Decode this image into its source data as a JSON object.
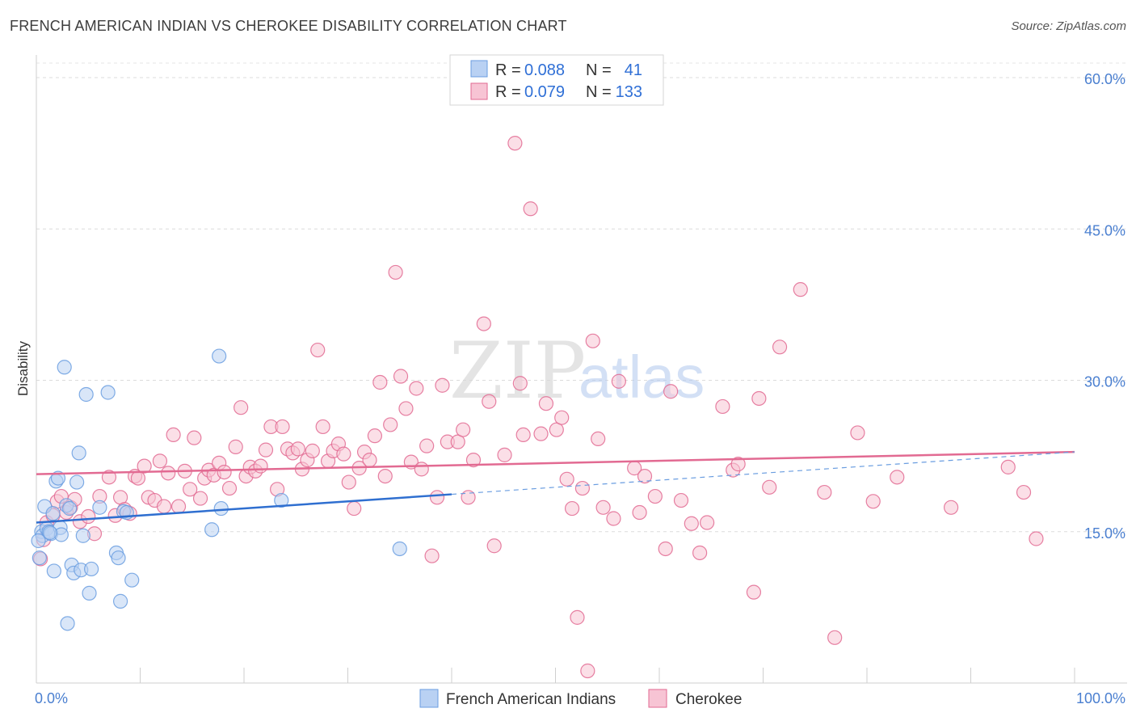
{
  "header": {
    "title": "FRENCH AMERICAN INDIAN VS CHEROKEE DISABILITY CORRELATION CHART",
    "source": "Source: ZipAtlas.com"
  },
  "watermark": {
    "zip": "ZIP",
    "atlas": "atlas"
  },
  "legend": {
    "rows": [
      {
        "r_label": "R =",
        "r_value": "0.088",
        "n_label": "N =",
        "n_value": "41",
        "color": "#a9c7f0"
      },
      {
        "r_label": "R =",
        "r_value": "0.079",
        "n_label": "N =",
        "n_value": "133",
        "color": "#f5b5c9"
      }
    ]
  },
  "chart_data": {
    "type": "scatter",
    "title": "FRENCH AMERICAN INDIAN VS CHEROKEE DISABILITY CORRELATION CHART",
    "xlabel": "",
    "ylabel": "Disability",
    "xlim": [
      0,
      100
    ],
    "ylim": [
      0,
      60
    ],
    "x_tick_labels": [
      "0.0%",
      "100.0%"
    ],
    "y_ticks": [
      15,
      30,
      45,
      60
    ],
    "y_tick_labels": [
      "15.0%",
      "30.0%",
      "45.0%",
      "60.0%"
    ],
    "grid": true,
    "legend_position": "top-center",
    "series": [
      {
        "name": "French American Indians",
        "color": "#6a9de0",
        "fill": "#b9d1f3",
        "trend": {
          "x": [
            0,
            40
          ],
          "y": [
            15.9,
            18.7
          ],
          "dashed_to": [
            100,
            22.9
          ]
        },
        "points": [
          [
            0.3,
            12.4
          ],
          [
            0.5,
            15.0
          ],
          [
            0.6,
            14.6
          ],
          [
            0.8,
            17.5
          ],
          [
            1.0,
            15.3
          ],
          [
            1.2,
            15.0
          ],
          [
            1.4,
            14.8
          ],
          [
            1.6,
            16.8
          ],
          [
            1.7,
            11.1
          ],
          [
            1.9,
            20.0
          ],
          [
            2.1,
            20.3
          ],
          [
            2.3,
            15.4
          ],
          [
            2.4,
            14.7
          ],
          [
            2.7,
            31.3
          ],
          [
            2.9,
            17.6
          ],
          [
            3.0,
            5.9
          ],
          [
            3.2,
            17.3
          ],
          [
            3.4,
            11.7
          ],
          [
            3.6,
            10.9
          ],
          [
            3.9,
            19.9
          ],
          [
            4.1,
            22.8
          ],
          [
            4.3,
            11.2
          ],
          [
            4.5,
            14.6
          ],
          [
            4.8,
            28.6
          ],
          [
            5.1,
            8.9
          ],
          [
            5.3,
            11.3
          ],
          [
            6.1,
            17.4
          ],
          [
            6.9,
            28.8
          ],
          [
            7.7,
            12.9
          ],
          [
            7.9,
            12.4
          ],
          [
            8.1,
            8.1
          ],
          [
            8.4,
            17.0
          ],
          [
            8.7,
            16.9
          ],
          [
            9.2,
            10.2
          ],
          [
            16.9,
            15.2
          ],
          [
            17.6,
            32.4
          ],
          [
            17.8,
            17.3
          ],
          [
            23.6,
            18.1
          ],
          [
            35.0,
            13.3
          ],
          [
            0.2,
            14.1
          ],
          [
            1.3,
            14.9
          ]
        ]
      },
      {
        "name": "Cherokee",
        "color": "#e26a92",
        "fill": "#f7c4d4",
        "trend": {
          "x": [
            0,
            100
          ],
          "y": [
            20.7,
            22.9
          ]
        },
        "points": [
          [
            0.4,
            12.3
          ],
          [
            0.7,
            14.2
          ],
          [
            1.0,
            15.9
          ],
          [
            1.6,
            16.6
          ],
          [
            2.0,
            18.0
          ],
          [
            2.4,
            18.5
          ],
          [
            2.9,
            16.9
          ],
          [
            3.3,
            17.4
          ],
          [
            3.7,
            18.2
          ],
          [
            4.2,
            16.0
          ],
          [
            5.0,
            16.5
          ],
          [
            5.6,
            14.8
          ],
          [
            6.1,
            18.5
          ],
          [
            7.0,
            20.4
          ],
          [
            7.6,
            16.6
          ],
          [
            8.1,
            18.4
          ],
          [
            8.5,
            17.2
          ],
          [
            9.0,
            16.8
          ],
          [
            9.5,
            20.5
          ],
          [
            9.8,
            20.3
          ],
          [
            10.4,
            21.5
          ],
          [
            10.8,
            18.4
          ],
          [
            11.4,
            18.1
          ],
          [
            11.9,
            22.0
          ],
          [
            12.3,
            17.5
          ],
          [
            12.7,
            20.8
          ],
          [
            13.2,
            24.6
          ],
          [
            13.7,
            17.5
          ],
          [
            14.3,
            21.0
          ],
          [
            14.8,
            19.2
          ],
          [
            15.2,
            24.3
          ],
          [
            15.8,
            18.3
          ],
          [
            16.2,
            20.3
          ],
          [
            16.6,
            21.1
          ],
          [
            17.1,
            20.6
          ],
          [
            17.6,
            21.8
          ],
          [
            18.1,
            20.9
          ],
          [
            18.6,
            19.3
          ],
          [
            19.2,
            23.4
          ],
          [
            19.7,
            27.3
          ],
          [
            20.2,
            20.5
          ],
          [
            20.6,
            21.4
          ],
          [
            21.1,
            21.0
          ],
          [
            21.6,
            21.5
          ],
          [
            22.1,
            23.1
          ],
          [
            22.6,
            25.4
          ],
          [
            23.2,
            19.2
          ],
          [
            23.7,
            25.4
          ],
          [
            24.2,
            23.2
          ],
          [
            24.7,
            22.8
          ],
          [
            25.2,
            23.2
          ],
          [
            25.6,
            21.2
          ],
          [
            26.1,
            22.1
          ],
          [
            26.6,
            23.0
          ],
          [
            27.1,
            33.0
          ],
          [
            27.6,
            25.4
          ],
          [
            28.1,
            22.0
          ],
          [
            28.6,
            23.0
          ],
          [
            29.1,
            23.7
          ],
          [
            29.6,
            22.7
          ],
          [
            30.1,
            19.9
          ],
          [
            30.6,
            17.3
          ],
          [
            31.1,
            21.3
          ],
          [
            31.6,
            22.9
          ],
          [
            32.1,
            22.1
          ],
          [
            32.6,
            24.5
          ],
          [
            33.1,
            29.8
          ],
          [
            33.6,
            20.5
          ],
          [
            34.1,
            25.6
          ],
          [
            34.6,
            40.7
          ],
          [
            35.1,
            30.4
          ],
          [
            35.6,
            27.2
          ],
          [
            36.1,
            21.9
          ],
          [
            36.6,
            29.2
          ],
          [
            37.1,
            21.2
          ],
          [
            37.6,
            23.5
          ],
          [
            38.1,
            12.6
          ],
          [
            38.6,
            18.4
          ],
          [
            39.1,
            29.5
          ],
          [
            39.6,
            23.9
          ],
          [
            40.6,
            23.9
          ],
          [
            41.1,
            25.1
          ],
          [
            41.6,
            18.4
          ],
          [
            42.1,
            22.1
          ],
          [
            43.1,
            35.6
          ],
          [
            43.6,
            27.9
          ],
          [
            44.1,
            13.6
          ],
          [
            45.1,
            22.6
          ],
          [
            46.1,
            53.5
          ],
          [
            46.6,
            29.7
          ],
          [
            46.9,
            24.6
          ],
          [
            47.6,
            47.0
          ],
          [
            48.6,
            24.7
          ],
          [
            49.1,
            27.7
          ],
          [
            50.1,
            25.1
          ],
          [
            50.6,
            26.3
          ],
          [
            51.1,
            20.2
          ],
          [
            51.6,
            17.3
          ],
          [
            52.1,
            6.5
          ],
          [
            52.6,
            19.3
          ],
          [
            53.1,
            1.2
          ],
          [
            53.6,
            33.9
          ],
          [
            54.1,
            24.2
          ],
          [
            54.6,
            17.4
          ],
          [
            55.6,
            16.3
          ],
          [
            56.1,
            29.9
          ],
          [
            57.6,
            21.3
          ],
          [
            58.1,
            16.9
          ],
          [
            58.6,
            20.5
          ],
          [
            59.6,
            18.5
          ],
          [
            60.6,
            13.3
          ],
          [
            61.1,
            28.9
          ],
          [
            62.1,
            18.1
          ],
          [
            63.1,
            15.8
          ],
          [
            63.9,
            12.9
          ],
          [
            64.6,
            15.9
          ],
          [
            66.1,
            27.4
          ],
          [
            67.1,
            21.1
          ],
          [
            67.6,
            21.7
          ],
          [
            69.1,
            9.0
          ],
          [
            69.6,
            28.2
          ],
          [
            70.6,
            19.4
          ],
          [
            71.6,
            33.3
          ],
          [
            73.6,
            39.0
          ],
          [
            75.9,
            18.9
          ],
          [
            76.9,
            4.5
          ],
          [
            79.1,
            24.8
          ],
          [
            80.6,
            18.0
          ],
          [
            82.9,
            20.4
          ],
          [
            88.1,
            17.4
          ],
          [
            93.6,
            21.4
          ],
          [
            95.1,
            18.9
          ],
          [
            96.3,
            14.3
          ]
        ]
      }
    ]
  }
}
